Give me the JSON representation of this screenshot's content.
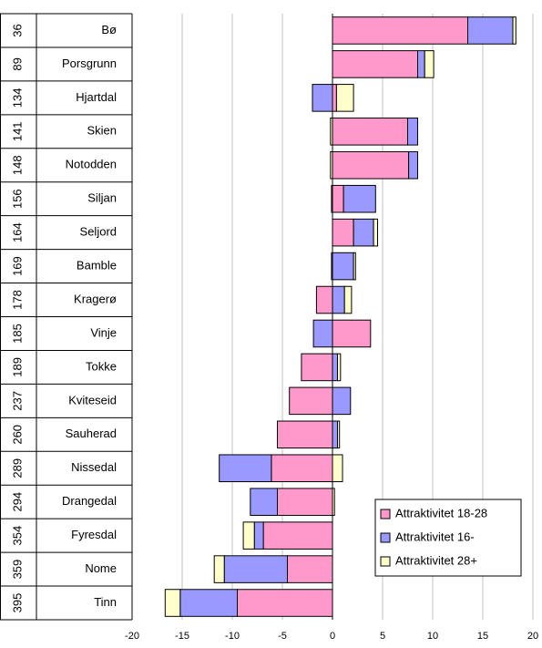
{
  "chart_data": {
    "type": "bar",
    "orientation": "horizontal",
    "stacked": true,
    "ranks": [
      36,
      89,
      134,
      141,
      148,
      156,
      164,
      169,
      178,
      185,
      189,
      237,
      260,
      289,
      294,
      354,
      359,
      395
    ],
    "categories": [
      "Bø",
      "Porsgrunn",
      "Hjartdal",
      "Skien",
      "Notodden",
      "Siljan",
      "Seljord",
      "Bamble",
      "Kragerø",
      "Vinje",
      "Tokke",
      "Kviteseid",
      "Sauherad",
      "Nissedal",
      "Drangedal",
      "Fyresdal",
      "Nome",
      "Tinn"
    ],
    "series": [
      {
        "name": "Attraktivitet 18-28",
        "color": "#ff99cc",
        "values": [
          13.5,
          8.5,
          0.4,
          7.5,
          7.6,
          1.1,
          2.1,
          -0.1,
          -1.6,
          3.8,
          -3.1,
          -4.3,
          -5.5,
          -6.1,
          -5.5,
          -6.9,
          -4.5,
          -9.5
        ]
      },
      {
        "name": "Attraktivitet 16-",
        "color": "#9999ff",
        "values": [
          4.5,
          0.7,
          -2.0,
          1.0,
          0.9,
          3.2,
          2.0,
          2.1,
          1.2,
          -1.9,
          0.5,
          1.8,
          0.5,
          -5.2,
          -2.7,
          -0.9,
          -6.3,
          -5.7
        ]
      },
      {
        "name": "Attraktivitet 28+",
        "color": "#ffffcc",
        "values": [
          0.3,
          0.9,
          1.7,
          -0.2,
          -0.2,
          -0.1,
          0.4,
          0.2,
          0.7,
          0,
          0.3,
          0,
          0.2,
          1.0,
          0.2,
          -1.1,
          -1.0,
          -1.5
        ]
      }
    ],
    "xlim": [
      -20,
      20
    ],
    "xticks": [
      -20,
      -15,
      -10,
      -5,
      0,
      5,
      10,
      15,
      20
    ],
    "grid": true,
    "legend": "lower right"
  }
}
